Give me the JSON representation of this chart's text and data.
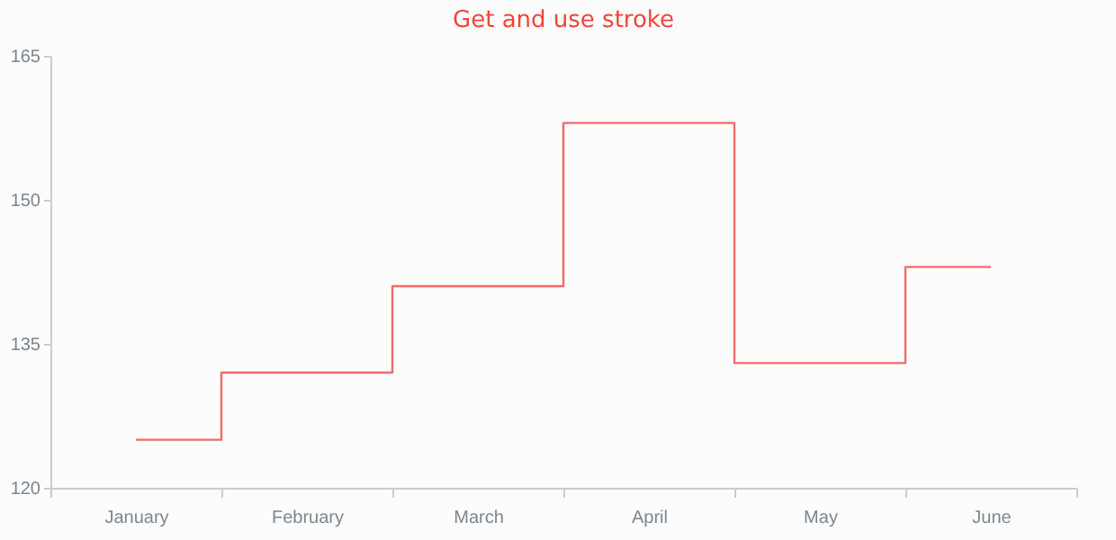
{
  "chart_data": {
    "type": "step",
    "title": "Get and use stroke",
    "categories": [
      "January",
      "February",
      "March",
      "April",
      "May",
      "June"
    ],
    "series": [
      {
        "color": "#f06a6a",
        "values": [
          125,
          132,
          141,
          158,
          133,
          143
        ]
      }
    ],
    "ylim": [
      120,
      165
    ],
    "yticks": [
      120,
      135,
      150,
      165
    ],
    "grid": false,
    "legend": false
  }
}
